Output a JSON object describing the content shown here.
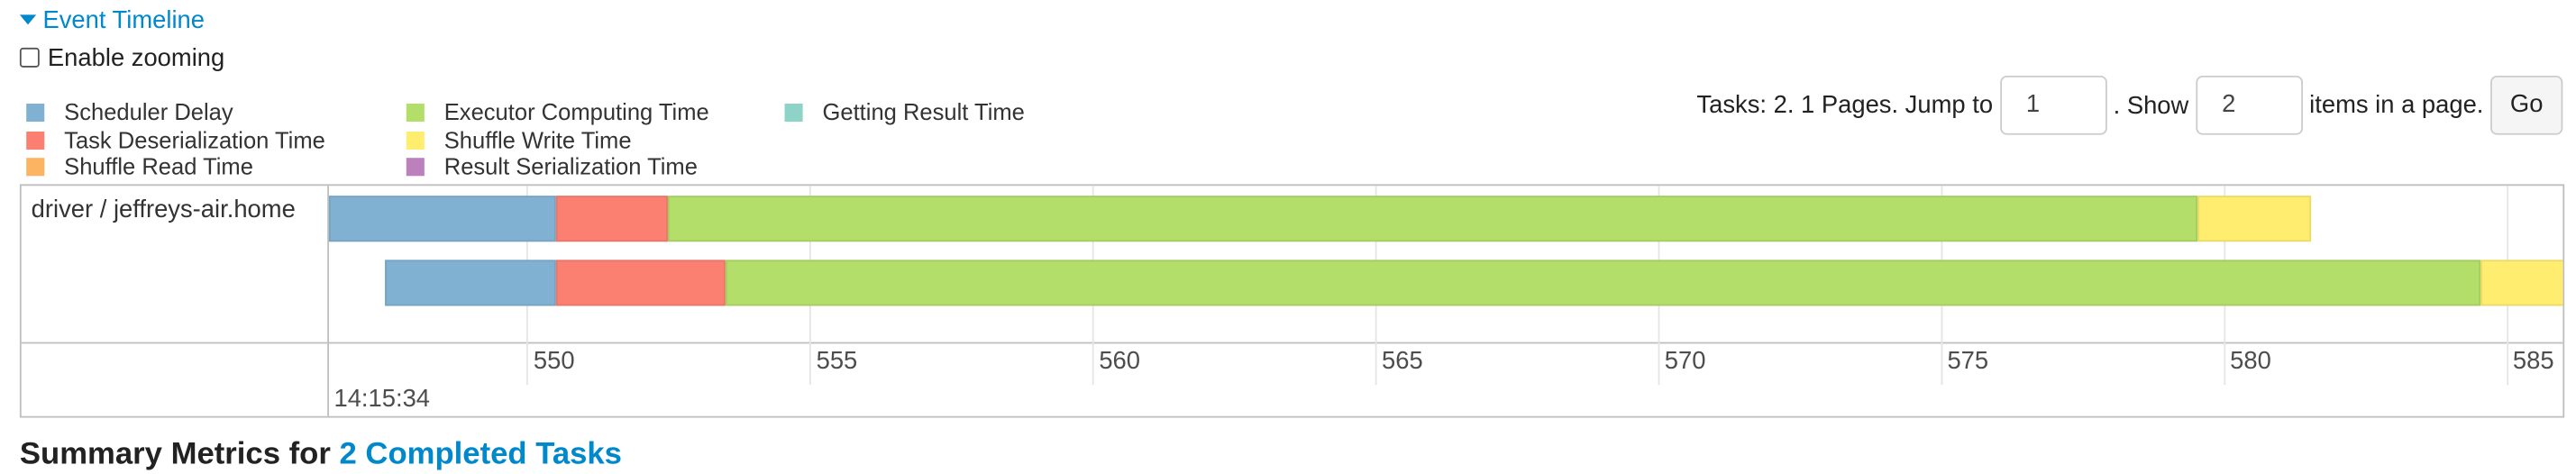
{
  "section": {
    "title": "Event Timeline"
  },
  "zoom": {
    "label": "Enable zooming",
    "checked": false
  },
  "legend": [
    {
      "label": "Scheduler Delay",
      "color": "#80b1d3"
    },
    {
      "label": "Task Deserialization Time",
      "color": "#fb8072"
    },
    {
      "label": "Shuffle Read Time",
      "color": "#fdb462"
    },
    {
      "label": "Executor Computing Time",
      "color": "#b3de69"
    },
    {
      "label": "Shuffle Write Time",
      "color": "#ffed6f"
    },
    {
      "label": "Result Serialization Time",
      "color": "#bc80bd"
    },
    {
      "label": "Getting Result Time",
      "color": "#8dd3c7"
    }
  ],
  "pager": {
    "text1": "Tasks: 2. 1 Pages. Jump to",
    "page_value": "1",
    "text2": ". Show",
    "size_value": "2",
    "text3": "items in a page.",
    "go_label": "Go"
  },
  "timeline": {
    "executor_label": "driver / jeffreys-air.home",
    "start_label": "14:15:34",
    "ticks": [
      "550",
      "555",
      "560",
      "565",
      "570",
      "575",
      "580",
      "585"
    ],
    "axis_unit": "ms after 14:15:34",
    "axis_range": [
      546.5,
      586
    ],
    "tasks": [
      {
        "segments": [
          {
            "phase": "Scheduler Delay",
            "start": 546.5,
            "end": 550.5
          },
          {
            "phase": "Task Deserialization Time",
            "start": 550.5,
            "end": 552.5
          },
          {
            "phase": "Executor Computing Time",
            "start": 552.5,
            "end": 579.55
          },
          {
            "phase": "Shuffle Write Time",
            "start": 579.55,
            "end": 581.55
          }
        ]
      },
      {
        "segments": [
          {
            "phase": "Scheduler Delay",
            "start": 547.5,
            "end": 550.5
          },
          {
            "phase": "Task Deserialization Time",
            "start": 550.5,
            "end": 553.5
          },
          {
            "phase": "Executor Computing Time",
            "start": 553.5,
            "end": 584.55
          },
          {
            "phase": "Shuffle Write Time",
            "start": 584.55,
            "end": 586.5
          }
        ]
      }
    ]
  },
  "summary": {
    "prefix": "Summary Metrics for",
    "link": "2 Completed Tasks"
  }
}
